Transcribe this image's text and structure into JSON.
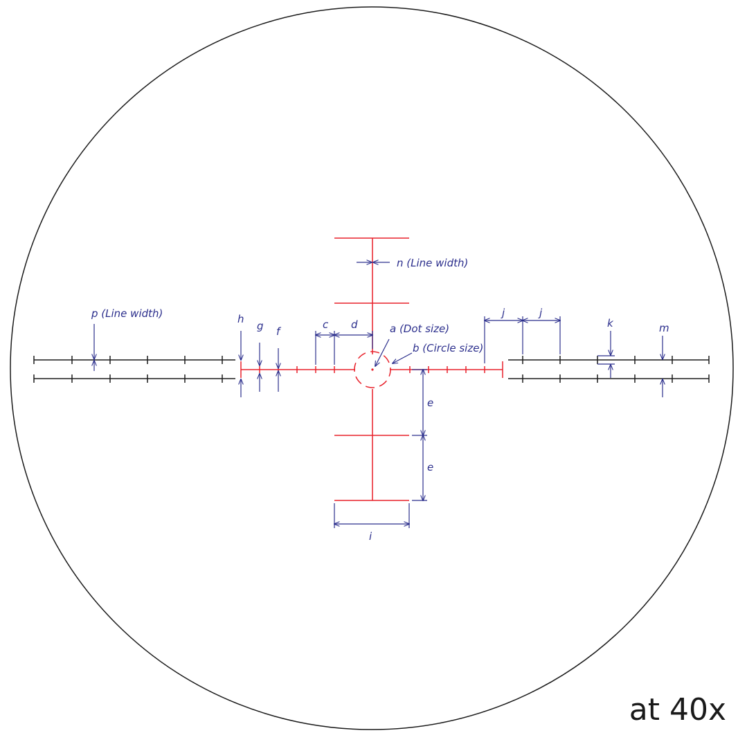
{
  "colors": {
    "reticle": "#e8202a",
    "outer_lines": "#1a1a1a",
    "dimension": "#2b2e8c",
    "field_circle": "#1a1a1a"
  },
  "labels": {
    "a": "a (Dot size)",
    "b": "b (Circle size)",
    "c": "c",
    "d": "d",
    "e1": "e",
    "e2": "e",
    "f": "f",
    "g": "g",
    "h": "h",
    "i": "i",
    "j1": "j",
    "j2": "j",
    "k": "k",
    "m": "m",
    "n": "n  (Line width)",
    "p": "p  (Line width)"
  },
  "magnification": "at 40x"
}
